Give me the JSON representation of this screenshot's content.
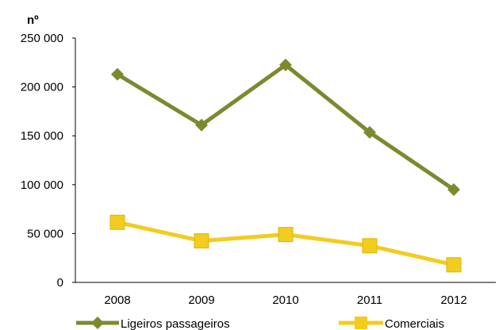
{
  "chart_data": {
    "type": "line",
    "title": "",
    "xlabel": "",
    "ylabel": "nº",
    "categories": [
      "2008",
      "2009",
      "2010",
      "2011",
      "2012"
    ],
    "ylim": [
      0,
      250000
    ],
    "yticks": [
      0,
      50000,
      100000,
      150000,
      200000,
      250000
    ],
    "ytick_labels": [
      "0",
      "50 000",
      "100 000",
      "150 000",
      "200 000",
      "250 000"
    ],
    "grid": false,
    "legend_position": "bottom",
    "series": [
      {
        "name": "Ligeiros passageiros",
        "values": [
          213000,
          161000,
          222500,
          153500,
          95000
        ],
        "color": "#7a8a2e",
        "marker": "diamond"
      },
      {
        "name": "Comerciais",
        "values": [
          61500,
          42500,
          49000,
          37500,
          18000
        ],
        "color": "#f2cc1f",
        "marker": "square"
      }
    ]
  }
}
